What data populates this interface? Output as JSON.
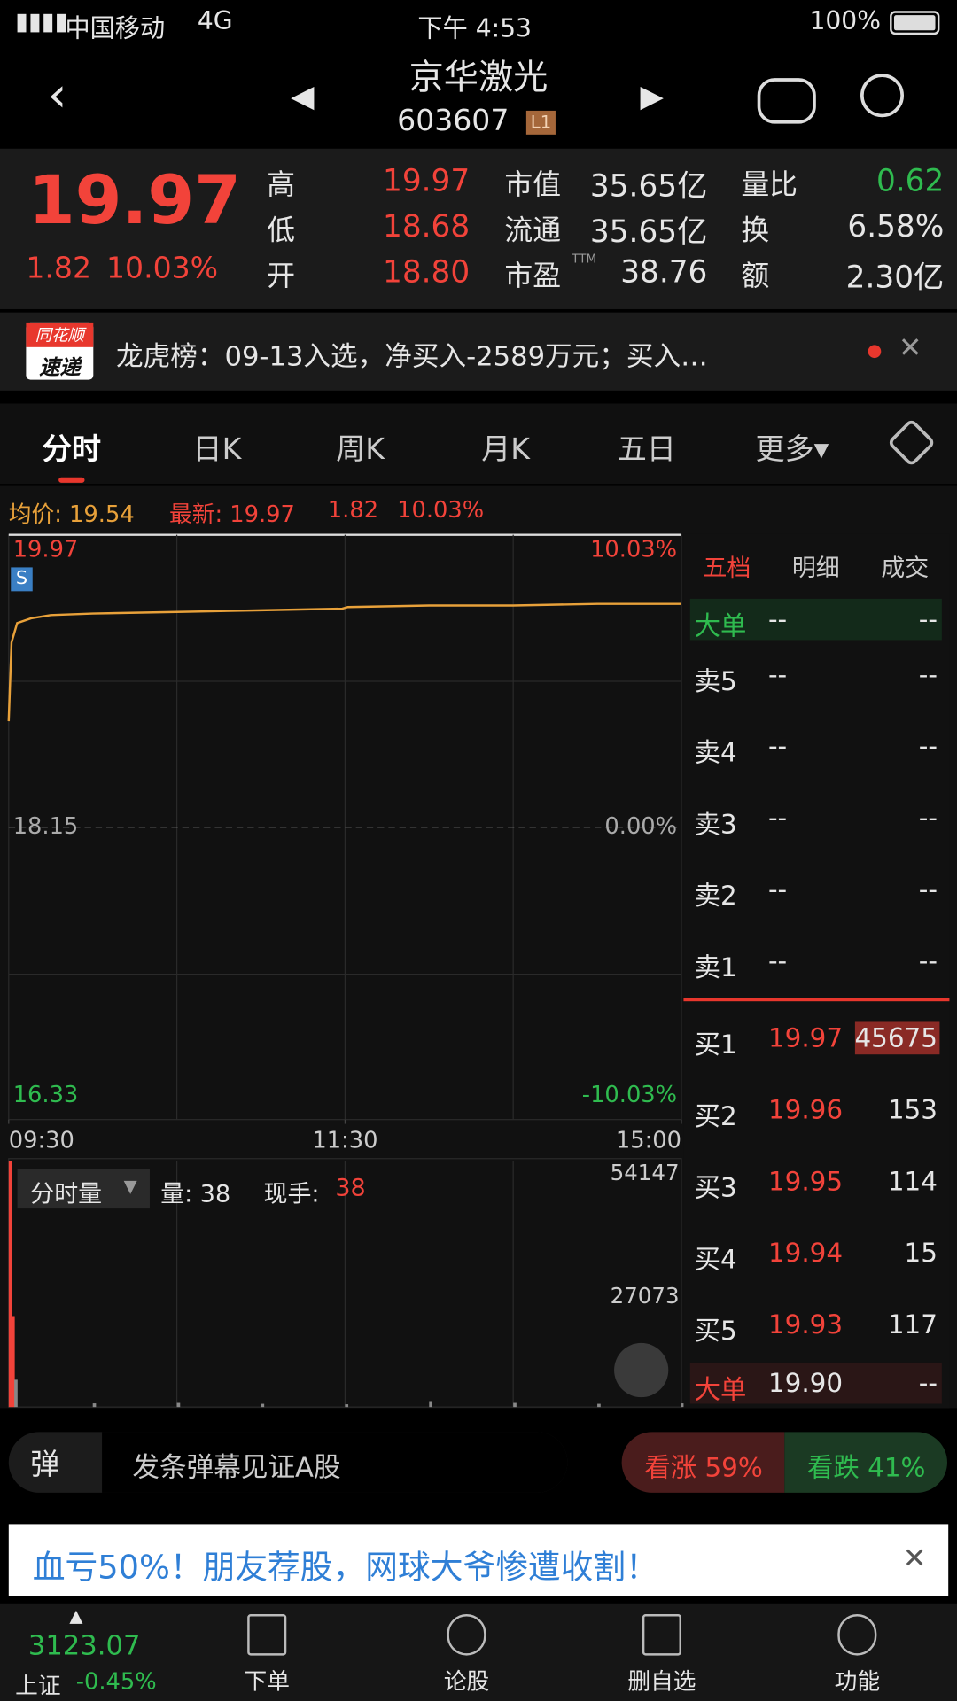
{
  "status_bar": {
    "carrier": "中国移动",
    "network": "4G",
    "time": "下午 4:53",
    "battery": "100%"
  },
  "header": {
    "title": "京华激光",
    "code": "603607",
    "level": "L1"
  },
  "quote": {
    "price": "19.97",
    "change": "1.82",
    "change_pct": "10.03%",
    "stats": [
      {
        "label": "高",
        "value": "19.97"
      },
      {
        "label": "低",
        "value": "18.68"
      },
      {
        "label": "开",
        "value": "18.80"
      },
      {
        "label": "市值",
        "value": "35.65亿"
      },
      {
        "label": "流通",
        "value": "35.65亿"
      },
      {
        "label": "市盈",
        "sup": "TTM",
        "value": "38.76"
      },
      {
        "label": "量比",
        "value": "0.62"
      },
      {
        "label": "换",
        "value": "6.58%"
      },
      {
        "label": "额",
        "value": "2.30亿"
      }
    ]
  },
  "news": {
    "badge_top": "同花顺",
    "badge_bottom": "速递",
    "text": "龙虎榜：09-13入选，净买入-2589万元；买入…"
  },
  "tabs": [
    "分时",
    "日K",
    "周K",
    "月K",
    "五日",
    "更多▾"
  ],
  "intraday": {
    "avg_label": "均价: 19.54",
    "latest_label": "最新: 19.97",
    "change": "1.82",
    "change_pct": "10.03%",
    "marker": "S",
    "ylim": [
      16.33,
      19.97
    ],
    "yticks": [
      19.97,
      18.15,
      16.33
    ],
    "right_labels": [
      "10.03%",
      "0.00%",
      "-10.03%"
    ],
    "xlim": [
      0,
      240
    ],
    "xticks": [
      {
        "value": 0,
        "label": "09:30"
      },
      {
        "value": 120,
        "label": "11:30"
      },
      {
        "value": 240,
        "label": "15:00"
      }
    ],
    "x": [
      0,
      1,
      3,
      8,
      15,
      30,
      60,
      90,
      119,
      121,
      150,
      180,
      210,
      240
    ],
    "avg_prices": [
      18.81,
      19.3,
      19.42,
      19.45,
      19.47,
      19.48,
      19.49,
      19.5,
      19.51,
      19.52,
      19.53,
      19.53,
      19.54,
      19.54
    ],
    "avg_color": "#e8a13a"
  },
  "volume": {
    "mode": "分时量",
    "amount": "量: 38",
    "current_label": "现手:",
    "current": "38",
    "ylim": [
      0,
      54147
    ],
    "yticks": [
      54147,
      27073
    ],
    "x": [
      0,
      1,
      2,
      30,
      60,
      90,
      120,
      150,
      180,
      210,
      240
    ],
    "values": [
      54147,
      20000,
      6000,
      800,
      900,
      700,
      600,
      1300,
      900,
      700,
      800
    ],
    "colors": [
      "#f2433a",
      "#f2433a",
      "#888",
      "#888",
      "#888",
      "#888",
      "#888",
      "#888",
      "#888",
      "#888",
      "#888"
    ]
  },
  "order_book": {
    "tabs": [
      "五档",
      "明细",
      "成交"
    ],
    "big_sell": {
      "label": "大单",
      "price": "--",
      "volume": "--"
    },
    "asks": [
      {
        "label": "卖5",
        "price": "--",
        "volume": "--"
      },
      {
        "label": "卖4",
        "price": "--",
        "volume": "--"
      },
      {
        "label": "卖3",
        "price": "--",
        "volume": "--"
      },
      {
        "label": "卖2",
        "price": "--",
        "volume": "--"
      },
      {
        "label": "卖1",
        "price": "--",
        "volume": "--"
      }
    ],
    "bids": [
      {
        "label": "买1",
        "price": "19.97",
        "volume": "45675"
      },
      {
        "label": "买2",
        "price": "19.96",
        "volume": "153"
      },
      {
        "label": "买3",
        "price": "19.95",
        "volume": "114"
      },
      {
        "label": "买4",
        "price": "19.94",
        "volume": "15"
      },
      {
        "label": "买5",
        "price": "19.93",
        "volume": "117"
      }
    ],
    "big_buy": {
      "label": "大单",
      "price": "19.90",
      "volume": "--"
    }
  },
  "danmu": {
    "icon": "弹",
    "placeholder": "发条弹幕见证A股",
    "bullish": "看涨 59%",
    "bearish": "看跌 41%"
  },
  "ad": {
    "text": "血亏50%！朋友荐股，网球大爷惨遭收割！"
  },
  "index": {
    "value": "3123.07",
    "name": "上证",
    "change": "-0.45%"
  },
  "nav": [
    "下单",
    "论股",
    "删自选",
    "功能"
  ]
}
